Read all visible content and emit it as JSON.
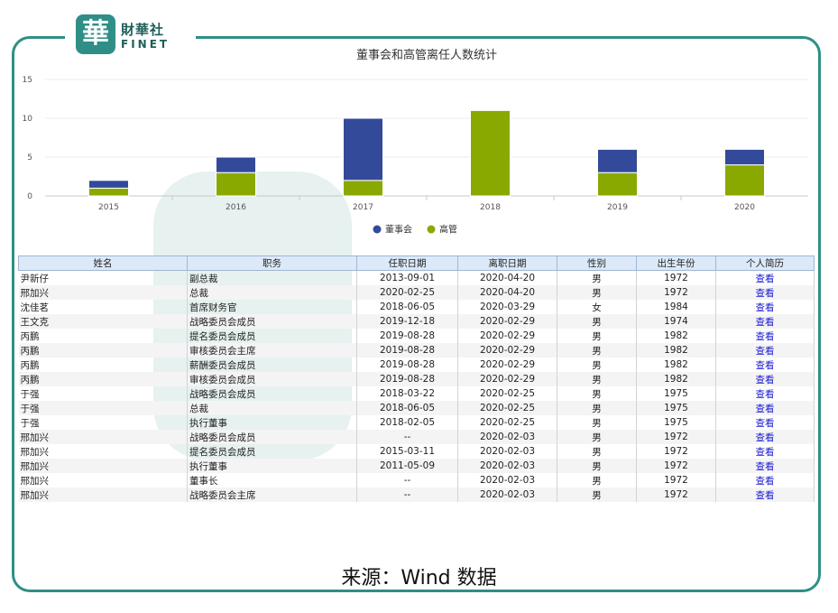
{
  "logo": {
    "cn": "財華社",
    "en": "FINET",
    "mark": "華"
  },
  "chart_data": {
    "type": "bar",
    "stacked": true,
    "title": "董事会和高管离任人数统计",
    "categories": [
      "2015",
      "2016",
      "2017",
      "2018",
      "2019",
      "2020"
    ],
    "series": [
      {
        "name": "高管",
        "color": "#8aa900",
        "values": [
          1,
          3,
          2,
          11,
          3,
          4
        ]
      },
      {
        "name": "董事会",
        "color": "#33499a",
        "values": [
          1,
          2,
          8,
          0,
          3,
          2
        ]
      }
    ],
    "yticks": [
      0,
      5,
      10,
      15
    ],
    "ylim": [
      0,
      15
    ],
    "grid": true,
    "legend_position": "bottom",
    "legend_order": [
      "董事会",
      "高管"
    ]
  },
  "table": {
    "headers": [
      "姓名",
      "职务",
      "任职日期",
      "离职日期",
      "性别",
      "出生年份",
      "个人简历"
    ],
    "rows": [
      [
        "尹新仔",
        "副总裁",
        "2013-09-01",
        "2020-04-20",
        "男",
        "1972",
        "查看"
      ],
      [
        "邢加兴",
        "总裁",
        "2020-02-25",
        "2020-04-20",
        "男",
        "1972",
        "查看"
      ],
      [
        "沈佳茗",
        "首席财务官",
        "2018-06-05",
        "2020-03-29",
        "女",
        "1984",
        "查看"
      ],
      [
        "王文克",
        "战略委员会成员",
        "2019-12-18",
        "2020-02-29",
        "男",
        "1974",
        "查看"
      ],
      [
        "丙鹏",
        "提名委员会成员",
        "2019-08-28",
        "2020-02-29",
        "男",
        "1982",
        "查看"
      ],
      [
        "丙鹏",
        "审核委员会主席",
        "2019-08-28",
        "2020-02-29",
        "男",
        "1982",
        "查看"
      ],
      [
        "丙鹏",
        "薪酬委员会成员",
        "2019-08-28",
        "2020-02-29",
        "男",
        "1982",
        "查看"
      ],
      [
        "丙鹏",
        "审核委员会成员",
        "2019-08-28",
        "2020-02-29",
        "男",
        "1982",
        "查看"
      ],
      [
        "于强",
        "战略委员会成员",
        "2018-03-22",
        "2020-02-25",
        "男",
        "1975",
        "查看"
      ],
      [
        "于强",
        "总裁",
        "2018-06-05",
        "2020-02-25",
        "男",
        "1975",
        "查看"
      ],
      [
        "于强",
        "执行董事",
        "2018-02-05",
        "2020-02-25",
        "男",
        "1975",
        "查看"
      ],
      [
        "邢加兴",
        "战略委员会成员",
        "--",
        "2020-02-03",
        "男",
        "1972",
        "查看"
      ],
      [
        "邢加兴",
        "提名委员会成员",
        "2015-03-11",
        "2020-02-03",
        "男",
        "1972",
        "查看"
      ],
      [
        "邢加兴",
        "执行董事",
        "2011-05-09",
        "2020-02-03",
        "男",
        "1972",
        "查看"
      ],
      [
        "邢加兴",
        "董事长",
        "--",
        "2020-02-03",
        "男",
        "1972",
        "查看"
      ],
      [
        "邢加兴",
        "战略委员会主席",
        "--",
        "2020-02-03",
        "男",
        "1972",
        "查看"
      ]
    ]
  },
  "source": "来源：Wind 数据"
}
